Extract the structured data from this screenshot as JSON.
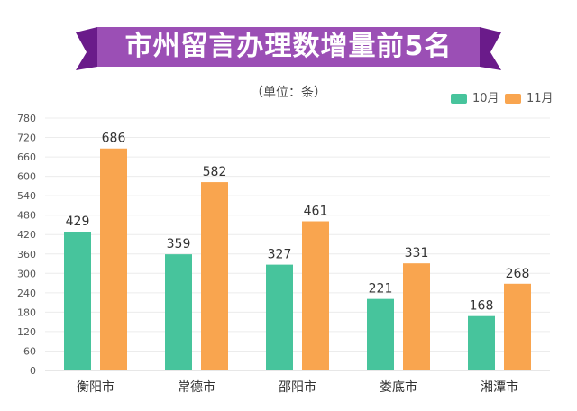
{
  "banner": {
    "title": "市州留言办理数增量前5名",
    "bg_color": "#9b4fb5",
    "ribbon_color": "#6a1b8a"
  },
  "unit_label": "（单位：条）",
  "chart_data": {
    "type": "bar",
    "categories": [
      "衡阳市",
      "常德市",
      "邵阳市",
      "娄底市",
      "湘潭市"
    ],
    "series": [
      {
        "name": "10月",
        "values": [
          429,
          359,
          327,
          221,
          168
        ],
        "color": "#47c49c"
      },
      {
        "name": "11月",
        "values": [
          686,
          582,
          461,
          331,
          268
        ],
        "color": "#f9a54f"
      }
    ],
    "yticks": [
      0,
      60,
      120,
      180,
      240,
      300,
      360,
      420,
      480,
      540,
      600,
      660,
      720,
      780
    ],
    "ylim": [
      0,
      780
    ],
    "grid": true,
    "legend_position": "top-right",
    "title": "市州留言办理数增量前5名",
    "xlabel": "",
    "ylabel": ""
  }
}
